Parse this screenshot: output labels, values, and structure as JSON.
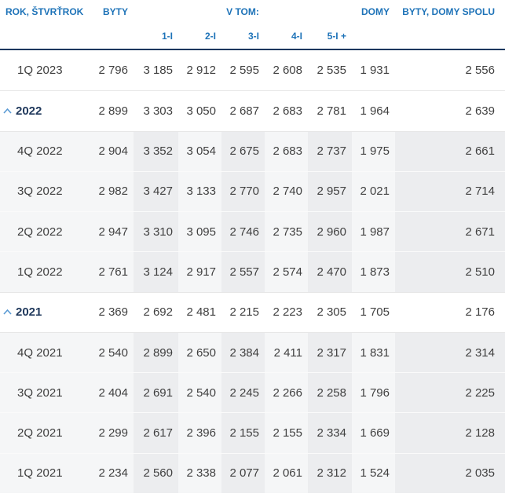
{
  "chart_data": {
    "type": "table",
    "title": "",
    "header": {
      "rok": "ROK, ŠTVRŤROK",
      "byty": "BYTY",
      "vtom": "V TOM:",
      "domy": "DOMY",
      "spolu": "BYTY, DOMY SPOLU"
    },
    "subcolumns": [
      "1-I",
      "2-I",
      "3-I",
      "4-I",
      "5-I +"
    ],
    "columns": [
      "ROK, ŠTVRŤROK",
      "BYTY",
      "1-I",
      "2-I",
      "3-I",
      "4-I",
      "5-I +",
      "DOMY",
      "BYTY, DOMY SPOLU"
    ],
    "rows": [
      {
        "label": "1Q 2023",
        "type": "quarter",
        "expandable": false,
        "striped": false,
        "values": [
          "2 796",
          "3 185",
          "2 912",
          "2 595",
          "2 608",
          "2 535",
          "1 931",
          "2 556"
        ]
      },
      {
        "label": "2022",
        "type": "year",
        "expandable": true,
        "striped": false,
        "values": [
          "2 899",
          "3 303",
          "3 050",
          "2 687",
          "2 683",
          "2 781",
          "1 964",
          "2 639"
        ]
      },
      {
        "label": "4Q 2022",
        "type": "quarter",
        "expandable": false,
        "striped": true,
        "values": [
          "2 904",
          "3 352",
          "3 054",
          "2 675",
          "2 683",
          "2 737",
          "1 975",
          "2 661"
        ]
      },
      {
        "label": "3Q 2022",
        "type": "quarter",
        "expandable": false,
        "striped": true,
        "values": [
          "2 982",
          "3 427",
          "3 133",
          "2 770",
          "2 740",
          "2 957",
          "2 021",
          "2 714"
        ]
      },
      {
        "label": "2Q 2022",
        "type": "quarter",
        "expandable": false,
        "striped": true,
        "values": [
          "2 947",
          "3 310",
          "3 095",
          "2 746",
          "2 735",
          "2 960",
          "1 987",
          "2 671"
        ]
      },
      {
        "label": "1Q 2022",
        "type": "quarter",
        "expandable": false,
        "striped": true,
        "values": [
          "2 761",
          "3 124",
          "2 917",
          "2 557",
          "2 574",
          "2 470",
          "1 873",
          "2 510"
        ]
      },
      {
        "label": "2021",
        "type": "year",
        "expandable": true,
        "striped": false,
        "values": [
          "2 369",
          "2 692",
          "2 481",
          "2 215",
          "2 223",
          "2 305",
          "1 705",
          "2 176"
        ]
      },
      {
        "label": "4Q 2021",
        "type": "quarter",
        "expandable": false,
        "striped": true,
        "values": [
          "2 540",
          "2 899",
          "2 650",
          "2 384",
          "2 411",
          "2 317",
          "1 831",
          "2 314"
        ]
      },
      {
        "label": "3Q 2021",
        "type": "quarter",
        "expandable": false,
        "striped": true,
        "values": [
          "2 404",
          "2 691",
          "2 540",
          "2 245",
          "2 266",
          "2 258",
          "1 796",
          "2 225"
        ]
      },
      {
        "label": "2Q 2021",
        "type": "quarter",
        "expandable": false,
        "striped": true,
        "values": [
          "2 299",
          "2 617",
          "2 396",
          "2 155",
          "2 155",
          "2 334",
          "1 669",
          "2 128"
        ]
      },
      {
        "label": "1Q 2021",
        "type": "quarter",
        "expandable": false,
        "striped": true,
        "values": [
          "2 234",
          "2 560",
          "2 338",
          "2 077",
          "2 061",
          "2 312",
          "1 524",
          "2 035"
        ]
      }
    ],
    "layout": {
      "grid": "off",
      "group_header_span": [
        "1-I",
        "5-I +"
      ]
    }
  },
  "colors": {
    "header_text": "#1E73B8",
    "header_rule": "#17375E",
    "year_text": "#20395C",
    "chevron": "#5B9BD5",
    "value_text": "#404040",
    "stripe_light": "#F5F6F7",
    "stripe_dark": "#ECEDEF",
    "row_separator": "#E7E7E7"
  },
  "icons": {
    "collapse": "chevron-up-icon"
  }
}
